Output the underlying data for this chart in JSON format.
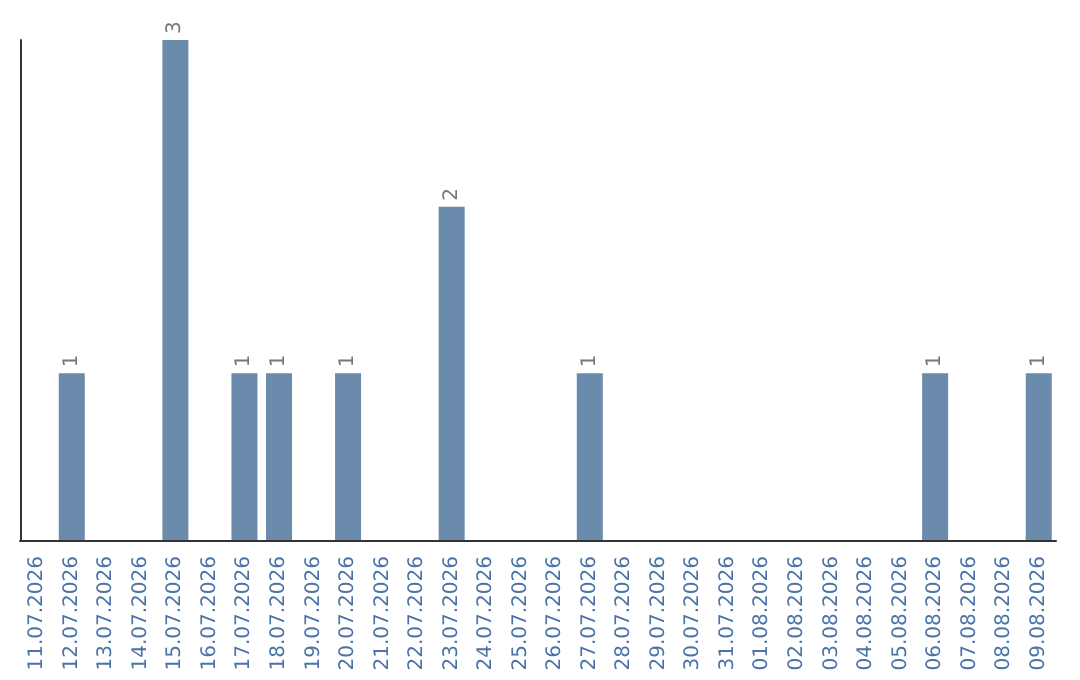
{
  "chart_data": {
    "type": "bar",
    "categories": [
      "11.07.2026",
      "12.07.2026",
      "13.07.2026",
      "14.07.2026",
      "15.07.2026",
      "16.07.2026",
      "17.07.2026",
      "18.07.2026",
      "19.07.2026",
      "20.07.2026",
      "21.07.2026",
      "22.07.2026",
      "23.07.2026",
      "24.07.2026",
      "25.07.2026",
      "26.07.2026",
      "27.07.2026",
      "28.07.2026",
      "29.07.2026",
      "30.07.2026",
      "31.07.2026",
      "01.08.2026",
      "02.08.2026",
      "03.08.2026",
      "04.08.2026",
      "05.08.2026",
      "06.08.2026",
      "07.08.2026",
      "08.08.2026",
      "09.08.2026"
    ],
    "values": [
      0,
      1,
      0,
      0,
      3,
      0,
      1,
      1,
      0,
      1,
      0,
      0,
      2,
      0,
      0,
      0,
      1,
      0,
      0,
      0,
      0,
      0,
      0,
      0,
      0,
      0,
      1,
      0,
      0,
      1
    ],
    "value_labels": [
      null,
      "1",
      null,
      null,
      "3",
      null,
      "1",
      "1",
      null,
      "1",
      null,
      null,
      "2",
      null,
      null,
      null,
      "1",
      null,
      null,
      null,
      null,
      null,
      null,
      null,
      null,
      null,
      "1",
      null,
      null,
      "1"
    ],
    "color": "#6a8bab",
    "tick_labels": "x",
    "grid": false
  }
}
